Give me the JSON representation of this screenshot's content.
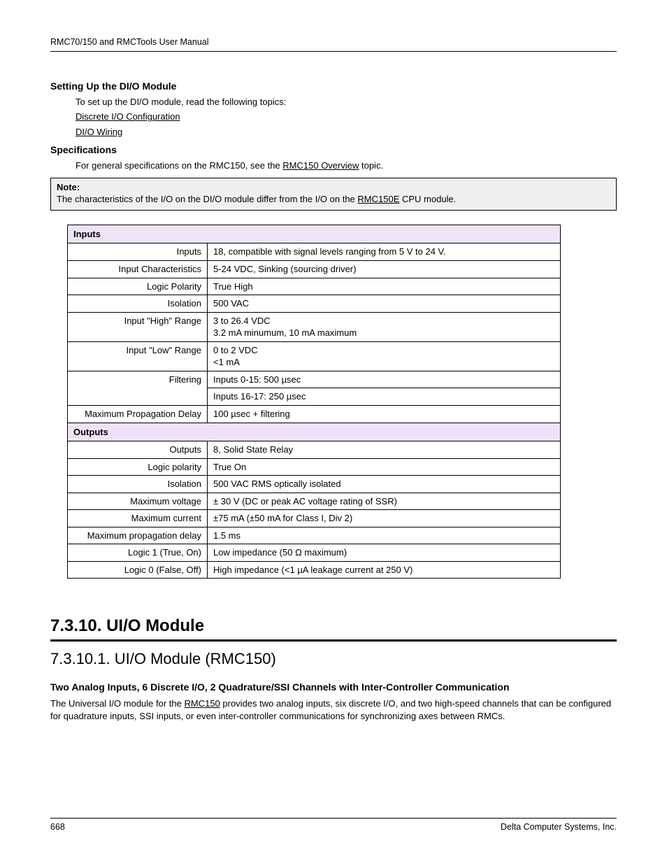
{
  "header": "RMC70/150 and RMCTools User Manual",
  "sec1": {
    "title": "Setting Up the DI/O Module",
    "intro": "To set up the DI/O module, read the following topics:",
    "link1": "Discrete I/O Configuration",
    "link2": "DI/O Wiring"
  },
  "sec2": {
    "title": "Specifications",
    "prefix": "For general specifications on the RMC150, see the ",
    "link": "RMC150 Overview",
    "suffix": " topic."
  },
  "note": {
    "label": "Note:",
    "prefix": "The characteristics of the I/O on the DI/O module differ from the I/O on the ",
    "link": "RMC150E",
    "suffix": " CPU module."
  },
  "table": {
    "group1": "Inputs",
    "r1": {
      "k": "Inputs",
      "v": "18, compatible with signal levels ranging from 5 V to 24 V."
    },
    "r2": {
      "k": "Input Characteristics",
      "v": "5-24 VDC, Sinking (sourcing driver)"
    },
    "r3": {
      "k": "Logic Polarity",
      "v": "True High"
    },
    "r4": {
      "k": "Isolation",
      "v": "500 VAC"
    },
    "r5": {
      "k": "Input \"High\" Range",
      "v": "3 to 26.4 VDC\n3.2 mA minumum, 10 mA maximum"
    },
    "r6": {
      "k": "Input \"Low\" Range",
      "v": "0 to 2 VDC\n<1 mA"
    },
    "r7": {
      "k": "Filtering",
      "v1": "Inputs 0-15: 500 µsec",
      "v2": "Inputs 16-17: 250 µsec"
    },
    "r8": {
      "k": "Maximum Propagation Delay",
      "v": "100 µsec + filtering"
    },
    "group2": "Outputs",
    "r9": {
      "k": "Outputs",
      "v": "8, Solid State Relay"
    },
    "r10": {
      "k": "Logic polarity",
      "v": "True On"
    },
    "r11": {
      "k": "Isolation",
      "v": "500 VAC RMS optically isolated"
    },
    "r12": {
      "k": "Maximum voltage",
      "v": "± 30 V (DC or peak AC voltage rating of SSR)"
    },
    "r13": {
      "k": "Maximum current",
      "v": "±75 mA (±50 mA for Class I, Div 2)"
    },
    "r14": {
      "k": "Maximum propagation delay",
      "v": "1.5 ms"
    },
    "r15": {
      "k": "Logic 1 (True, On)",
      "v": "Low impedance (50 Ω maximum)"
    },
    "r16": {
      "k": "Logic 0 (False, Off)",
      "v": "High impedance (<1 µA leakage current at 250 V)"
    }
  },
  "h2": "7.3.10. UI/O Module",
  "h3": "7.3.10.1. UI/O Module (RMC150)",
  "para_title": "Two Analog Inputs, 6 Discrete I/O, 2 Quadrature/SSI Channels with Inter-Controller Communication",
  "para": {
    "prefix": "The Universal I/O module for the ",
    "link": "RMC150",
    "suffix": " provides two analog inputs, six discrete I/O, and two high-speed channels that can be configured for quadrature inputs, SSI inputs, or even inter-controller communications for synchronizing axes between RMCs."
  },
  "footer": {
    "page": "668",
    "company": "Delta Computer Systems, Inc."
  },
  "colors": {
    "header_bg": "#efe4f7",
    "note_bg": "#f0f0f0"
  }
}
